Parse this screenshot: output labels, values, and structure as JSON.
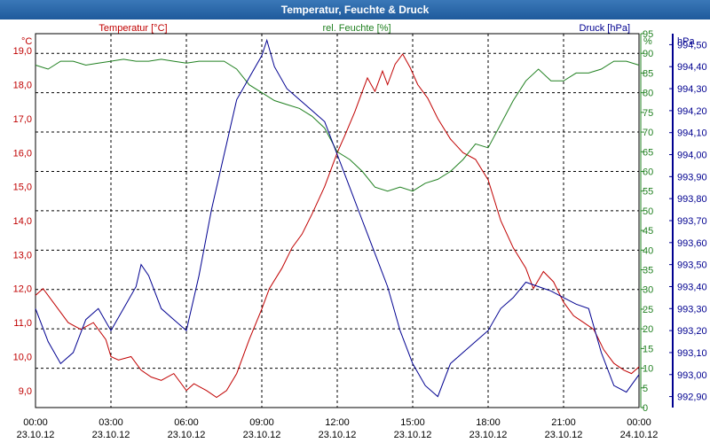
{
  "window": {
    "title": "Temperatur, Feuchte & Druck"
  },
  "chart_data": {
    "type": "line",
    "title": "Temperatur, Feuchte & Druck",
    "x_ticks": [
      {
        "time": "00:00",
        "date": "23.10.12",
        "h": 0
      },
      {
        "time": "03:00",
        "date": "23.10.12",
        "h": 3
      },
      {
        "time": "06:00",
        "date": "23.10.12",
        "h": 6
      },
      {
        "time": "09:00",
        "date": "23.10.12",
        "h": 9
      },
      {
        "time": "12:00",
        "date": "23.10.12",
        "h": 12
      },
      {
        "time": "15:00",
        "date": "23.10.12",
        "h": 15
      },
      {
        "time": "18:00",
        "date": "23.10.12",
        "h": 18
      },
      {
        "time": "21:00",
        "date": "23.10.12",
        "h": 21
      },
      {
        "time": "00:00",
        "date": "24.10.12",
        "h": 24
      }
    ],
    "axes": {
      "temperature": {
        "unit": "°C",
        "label": "Temperatur [°C]",
        "min": 8.5,
        "max": 19.5,
        "ticks": [
          "19,0",
          "18,0",
          "17,0",
          "16,0",
          "15,0",
          "14,0",
          "13,0",
          "12,0",
          "11,0",
          "10,0",
          "9,0"
        ],
        "color": "#c00000"
      },
      "humidity": {
        "unit": "%",
        "label": "rel. Feuchte [%]",
        "min": 0,
        "max": 95,
        "ticks": [
          "95",
          "90",
          "85",
          "80",
          "75",
          "70",
          "65",
          "60",
          "55",
          "50",
          "45",
          "40",
          "35",
          "30",
          "25",
          "20",
          "15",
          "10",
          "5",
          "0"
        ],
        "color": "#208020"
      },
      "pressure": {
        "unit": "hPa",
        "label": "Druck [hPa]",
        "min": 992.85,
        "max": 994.55,
        "ticks": [
          "994,50",
          "994,40",
          "994,30",
          "994,20",
          "994,10",
          "994,00",
          "993,90",
          "993,80",
          "993,70",
          "993,60",
          "993,50",
          "993,40",
          "993,30",
          "993,20",
          "993,10",
          "993,00",
          "992,90"
        ],
        "color": "#000090"
      }
    },
    "series": [
      {
        "name": "Temperatur [°C]",
        "axis": "temperature",
        "color": "#c00000",
        "points": [
          [
            0,
            11.8
          ],
          [
            0.3,
            12.0
          ],
          [
            0.8,
            11.5
          ],
          [
            1.3,
            11.0
          ],
          [
            1.8,
            10.8
          ],
          [
            2.3,
            11.0
          ],
          [
            2.8,
            10.5
          ],
          [
            3.0,
            10.0
          ],
          [
            3.3,
            9.9
          ],
          [
            3.8,
            10.0
          ],
          [
            4.2,
            9.6
          ],
          [
            4.6,
            9.4
          ],
          [
            5.0,
            9.3
          ],
          [
            5.5,
            9.5
          ],
          [
            6.0,
            9.0
          ],
          [
            6.3,
            9.2
          ],
          [
            6.8,
            9.0
          ],
          [
            7.2,
            8.8
          ],
          [
            7.6,
            9.0
          ],
          [
            8.0,
            9.5
          ],
          [
            8.5,
            10.5
          ],
          [
            9.0,
            11.4
          ],
          [
            9.3,
            12.0
          ],
          [
            9.8,
            12.6
          ],
          [
            10.2,
            13.2
          ],
          [
            10.6,
            13.6
          ],
          [
            11.0,
            14.2
          ],
          [
            11.5,
            15.0
          ],
          [
            12.0,
            16.0
          ],
          [
            12.3,
            16.5
          ],
          [
            12.7,
            17.2
          ],
          [
            13.0,
            17.8
          ],
          [
            13.2,
            18.2
          ],
          [
            13.5,
            17.8
          ],
          [
            13.8,
            18.4
          ],
          [
            14.0,
            18.0
          ],
          [
            14.3,
            18.6
          ],
          [
            14.6,
            18.9
          ],
          [
            14.9,
            18.5
          ],
          [
            15.2,
            18.0
          ],
          [
            15.6,
            17.6
          ],
          [
            16.0,
            17.0
          ],
          [
            16.5,
            16.4
          ],
          [
            17.0,
            16.0
          ],
          [
            17.5,
            15.8
          ],
          [
            18.0,
            15.2
          ],
          [
            18.5,
            14.0
          ],
          [
            19.0,
            13.2
          ],
          [
            19.5,
            12.6
          ],
          [
            19.8,
            12.0
          ],
          [
            20.2,
            12.5
          ],
          [
            20.6,
            12.2
          ],
          [
            21.0,
            11.6
          ],
          [
            21.4,
            11.2
          ],
          [
            21.8,
            11.0
          ],
          [
            22.2,
            10.8
          ],
          [
            22.6,
            10.2
          ],
          [
            23.0,
            9.8
          ],
          [
            23.4,
            9.6
          ],
          [
            23.7,
            9.5
          ],
          [
            24.0,
            9.7
          ]
        ]
      },
      {
        "name": "rel. Feuchte [%]",
        "axis": "humidity",
        "color": "#208020",
        "points": [
          [
            0,
            87
          ],
          [
            0.5,
            86
          ],
          [
            1.0,
            88
          ],
          [
            1.5,
            88
          ],
          [
            2.0,
            87
          ],
          [
            2.5,
            87.5
          ],
          [
            3.0,
            88
          ],
          [
            3.5,
            88.5
          ],
          [
            4.0,
            88
          ],
          [
            4.5,
            88
          ],
          [
            5.0,
            88.5
          ],
          [
            5.5,
            88
          ],
          [
            6.0,
            87.5
          ],
          [
            6.5,
            88
          ],
          [
            7.0,
            88
          ],
          [
            7.5,
            88
          ],
          [
            8.0,
            86
          ],
          [
            8.5,
            82
          ],
          [
            9.0,
            80
          ],
          [
            9.5,
            78
          ],
          [
            10.0,
            77
          ],
          [
            10.5,
            76
          ],
          [
            11.0,
            74
          ],
          [
            11.5,
            71
          ],
          [
            12.0,
            65
          ],
          [
            12.5,
            63
          ],
          [
            13.0,
            60
          ],
          [
            13.5,
            56
          ],
          [
            14.0,
            55
          ],
          [
            14.5,
            56
          ],
          [
            15.0,
            55
          ],
          [
            15.5,
            57
          ],
          [
            16.0,
            58
          ],
          [
            16.5,
            60
          ],
          [
            17.0,
            63
          ],
          [
            17.5,
            67
          ],
          [
            18.0,
            66
          ],
          [
            18.5,
            72
          ],
          [
            19.0,
            78
          ],
          [
            19.5,
            83
          ],
          [
            20.0,
            86
          ],
          [
            20.5,
            83
          ],
          [
            21.0,
            83
          ],
          [
            21.5,
            85
          ],
          [
            22.0,
            85
          ],
          [
            22.5,
            86
          ],
          [
            23.0,
            88
          ],
          [
            23.5,
            88
          ],
          [
            24.0,
            87
          ]
        ]
      },
      {
        "name": "Druck [hPa]",
        "axis": "pressure",
        "color": "#000090",
        "points": [
          [
            0,
            993.3
          ],
          [
            0.5,
            993.15
          ],
          [
            1.0,
            993.05
          ],
          [
            1.5,
            993.1
          ],
          [
            2.0,
            993.25
          ],
          [
            2.5,
            993.3
          ],
          [
            3.0,
            993.2
          ],
          [
            3.5,
            993.3
          ],
          [
            4.0,
            993.4
          ],
          [
            4.2,
            993.5
          ],
          [
            4.5,
            993.45
          ],
          [
            5.0,
            993.3
          ],
          [
            5.5,
            993.25
          ],
          [
            6.0,
            993.2
          ],
          [
            6.5,
            993.45
          ],
          [
            7.0,
            993.75
          ],
          [
            7.5,
            994.0
          ],
          [
            8.0,
            994.25
          ],
          [
            8.5,
            994.35
          ],
          [
            9.0,
            994.45
          ],
          [
            9.2,
            994.52
          ],
          [
            9.5,
            994.4
          ],
          [
            10.0,
            994.3
          ],
          [
            10.5,
            994.25
          ],
          [
            11.0,
            994.2
          ],
          [
            11.5,
            994.15
          ],
          [
            12.0,
            994.0
          ],
          [
            12.5,
            993.85
          ],
          [
            13.0,
            993.7
          ],
          [
            13.5,
            993.55
          ],
          [
            14.0,
            993.4
          ],
          [
            14.5,
            993.2
          ],
          [
            15.0,
            993.05
          ],
          [
            15.5,
            992.95
          ],
          [
            16.0,
            992.9
          ],
          [
            16.5,
            993.05
          ],
          [
            17.0,
            993.1
          ],
          [
            17.5,
            993.15
          ],
          [
            18.0,
            993.2
          ],
          [
            18.5,
            993.3
          ],
          [
            19.0,
            993.35
          ],
          [
            19.5,
            993.42
          ],
          [
            20.0,
            993.4
          ],
          [
            20.5,
            993.38
          ],
          [
            21.0,
            993.35
          ],
          [
            21.5,
            993.32
          ],
          [
            22.0,
            993.3
          ],
          [
            22.5,
            993.1
          ],
          [
            23.0,
            992.95
          ],
          [
            23.5,
            992.92
          ],
          [
            24.0,
            993.0
          ]
        ]
      }
    ]
  }
}
